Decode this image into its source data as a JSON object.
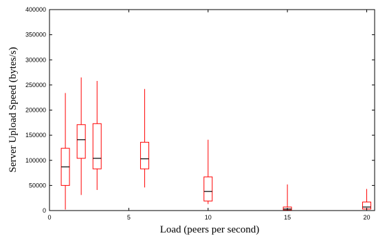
{
  "chart_data": {
    "type": "box",
    "title": "",
    "xlabel": "Load (peers per second)",
    "ylabel": "Server Upload Speed (bytes/s)",
    "xlim": [
      0,
      20.5
    ],
    "ylim": [
      0,
      400000
    ],
    "xticks": [
      0,
      5,
      10,
      15,
      20
    ],
    "yticks": [
      0,
      50000,
      100000,
      150000,
      200000,
      250000,
      300000,
      350000,
      400000
    ],
    "grid": false,
    "legend": "none",
    "colors": {
      "box": "#ff0000",
      "median": "#000000",
      "axes": "#000000"
    },
    "boxes": [
      {
        "x": 1,
        "min": 2000,
        "q1": 50000,
        "median": 87000,
        "q3": 124000,
        "max": 234000
      },
      {
        "x": 2,
        "min": 31000,
        "q1": 104000,
        "median": 141000,
        "q3": 171000,
        "max": 265000
      },
      {
        "x": 3,
        "min": 41000,
        "q1": 83000,
        "median": 104000,
        "q3": 173000,
        "max": 258000
      },
      {
        "x": 6,
        "min": 46000,
        "q1": 83000,
        "median": 103000,
        "q3": 136000,
        "max": 242000
      },
      {
        "x": 10,
        "min": 13000,
        "q1": 19000,
        "median": 38000,
        "q3": 67000,
        "max": 141000
      },
      {
        "x": 15,
        "min": 0,
        "q1": 1000,
        "median": 3000,
        "q3": 7000,
        "max": 52000
      },
      {
        "x": 20,
        "min": 0,
        "q1": 3000,
        "median": 7000,
        "q3": 17000,
        "max": 43000
      }
    ]
  }
}
